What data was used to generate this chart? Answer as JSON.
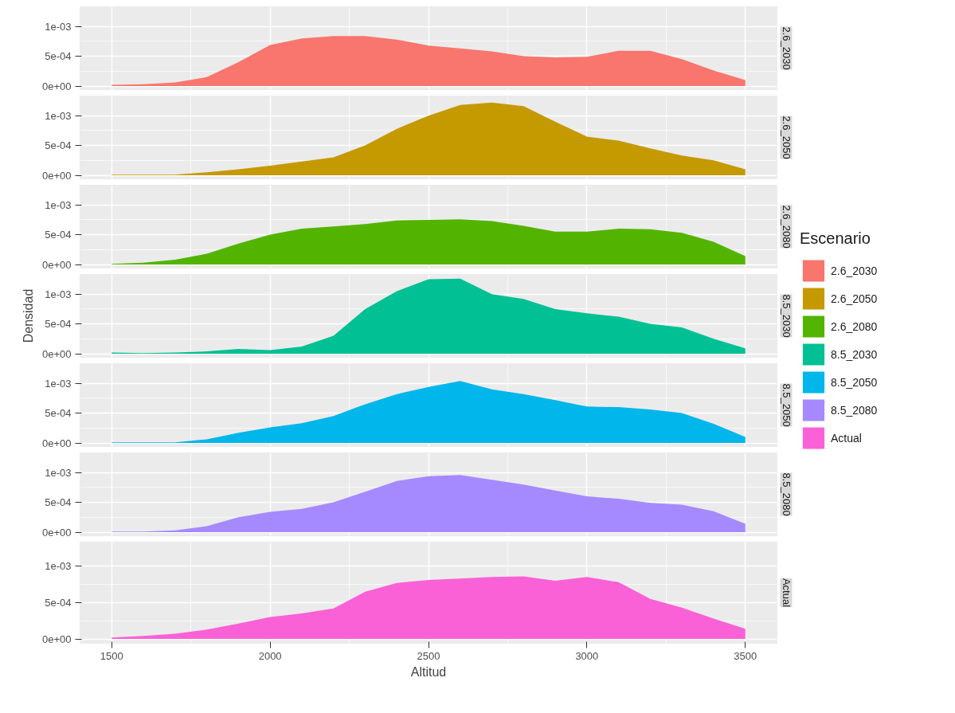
{
  "chart_data": [
    {
      "type": "area",
      "x": [
        1500,
        1600,
        1700,
        1800,
        1900,
        2000,
        2100,
        2200,
        2300,
        2400,
        2500,
        2600,
        2700,
        2800,
        2900,
        3000,
        3100,
        3200,
        3300,
        3400,
        3500
      ],
      "series": [
        {
          "name": "2.6_2030",
          "color": "#f8766d",
          "values": [
            2e-05,
            3e-05,
            6e-05,
            0.00015,
            0.0004,
            0.00069,
            0.0008,
            0.00084,
            0.00084,
            0.00078,
            0.00068,
            0.00063,
            0.00058,
            0.0005,
            0.00048,
            0.00049,
            0.00059,
            0.00059,
            0.00045,
            0.00026,
            0.0001
          ]
        }
      ],
      "xlim": [
        1400,
        3600
      ],
      "ylim": [
        -6e-05,
        0.00133
      ],
      "yticks": [
        {
          "value": 0,
          "label": "0e+00"
        },
        {
          "value": 0.0005,
          "label": "5e-04"
        },
        {
          "value": 0.001,
          "label": "1e-03"
        }
      ],
      "xticks": [
        1500,
        2000,
        2500,
        3000,
        3500
      ],
      "tick_labels": "y",
      "grid": true,
      "legend": "right",
      "legend_title": "Escenario"
    },
    {
      "type": "area",
      "x": [
        1500,
        1600,
        1700,
        1800,
        1900,
        2000,
        2100,
        2200,
        2300,
        2400,
        2500,
        2600,
        2700,
        2800,
        2900,
        3000,
        3100,
        3200,
        3300,
        3400,
        3500
      ],
      "series": [
        {
          "name": "2.6_2050",
          "color": "#c49a00",
          "values": [
            1e-05,
            1e-05,
            1e-05,
            5e-05,
            0.0001,
            0.00016,
            0.00023,
            0.0003,
            0.0005,
            0.00078,
            0.001,
            0.00118,
            0.00122,
            0.00116,
            0.0009,
            0.00065,
            0.00058,
            0.00045,
            0.00033,
            0.00025,
            0.0001
          ]
        }
      ],
      "xlim": [
        1400,
        3600
      ],
      "ylim": [
        -6e-05,
        0.00133
      ],
      "yticks": [
        {
          "value": 0,
          "label": "0e+00"
        },
        {
          "value": 0.0005,
          "label": "5e-04"
        },
        {
          "value": 0.001,
          "label": "1e-03"
        }
      ],
      "xticks": [
        1500,
        2000,
        2500,
        3000,
        3500
      ],
      "tick_labels": "y",
      "grid": true,
      "legend": "right"
    },
    {
      "type": "area",
      "x": [
        1500,
        1600,
        1700,
        1800,
        1900,
        2000,
        2100,
        2200,
        2300,
        2400,
        2500,
        2600,
        2700,
        2800,
        2900,
        3000,
        3100,
        3200,
        3300,
        3400,
        3500
      ],
      "series": [
        {
          "name": "2.6_2080",
          "color": "#53b400",
          "values": [
            1e-05,
            3e-05,
            8e-05,
            0.00018,
            0.00035,
            0.0005,
            0.0006,
            0.00064,
            0.00068,
            0.00074,
            0.00075,
            0.00076,
            0.00073,
            0.00065,
            0.00055,
            0.00055,
            0.0006,
            0.00059,
            0.00053,
            0.00038,
            0.00014
          ]
        }
      ],
      "xlim": [
        1400,
        3600
      ],
      "ylim": [
        -6e-05,
        0.00133
      ],
      "yticks": [
        {
          "value": 0,
          "label": "0e+00"
        },
        {
          "value": 0.0005,
          "label": "5e-04"
        },
        {
          "value": 0.001,
          "label": "1e-03"
        }
      ],
      "xticks": [
        1500,
        2000,
        2500,
        3000,
        3500
      ],
      "tick_labels": "y",
      "grid": true,
      "legend": "right"
    },
    {
      "type": "area",
      "x": [
        1500,
        1600,
        1700,
        1800,
        1900,
        2000,
        2100,
        2200,
        2300,
        2400,
        2500,
        2600,
        2700,
        2800,
        2900,
        3000,
        3100,
        3200,
        3300,
        3400,
        3500
      ],
      "series": [
        {
          "name": "8.5_2030",
          "color": "#00c094",
          "values": [
            2e-05,
            1e-05,
            2e-05,
            4e-05,
            8e-05,
            6e-05,
            0.00012,
            0.0003,
            0.00075,
            0.00105,
            0.00125,
            0.00126,
            0.001,
            0.00092,
            0.00075,
            0.00068,
            0.00062,
            0.0005,
            0.00044,
            0.00025,
            9e-05
          ]
        }
      ],
      "xlim": [
        1400,
        3600
      ],
      "ylim": [
        -6e-05,
        0.00133
      ],
      "yticks": [
        {
          "value": 0,
          "label": "0e+00"
        },
        {
          "value": 0.0005,
          "label": "5e-04"
        },
        {
          "value": 0.001,
          "label": "1e-03"
        }
      ],
      "xticks": [
        1500,
        2000,
        2500,
        3000,
        3500
      ],
      "tick_labels": "y",
      "grid": true,
      "legend": "right",
      "ylabel": "Densidad"
    },
    {
      "type": "area",
      "x": [
        1500,
        1600,
        1700,
        1800,
        1900,
        2000,
        2100,
        2200,
        2300,
        2400,
        2500,
        2600,
        2700,
        2800,
        2900,
        3000,
        3100,
        3200,
        3300,
        3400,
        3500
      ],
      "series": [
        {
          "name": "8.5_2050",
          "color": "#00b6eb",
          "values": [
            1e-05,
            1e-05,
            1e-05,
            6e-05,
            0.00017,
            0.00026,
            0.00033,
            0.00045,
            0.00065,
            0.00082,
            0.00094,
            0.00104,
            0.0009,
            0.00082,
            0.00072,
            0.00061,
            0.0006,
            0.00056,
            0.0005,
            0.00032,
            0.0001
          ]
        }
      ],
      "xlim": [
        1400,
        3600
      ],
      "ylim": [
        -6e-05,
        0.00133
      ],
      "yticks": [
        {
          "value": 0,
          "label": "0e+00"
        },
        {
          "value": 0.0005,
          "label": "5e-04"
        },
        {
          "value": 0.001,
          "label": "1e-03"
        }
      ],
      "xticks": [
        1500,
        2000,
        2500,
        3000,
        3500
      ],
      "tick_labels": "y",
      "grid": true,
      "legend": "right"
    },
    {
      "type": "area",
      "x": [
        1500,
        1600,
        1700,
        1800,
        1900,
        2000,
        2100,
        2200,
        2300,
        2400,
        2500,
        2600,
        2700,
        2800,
        2900,
        3000,
        3100,
        3200,
        3300,
        3400,
        3500
      ],
      "series": [
        {
          "name": "8.5_2080",
          "color": "#a58aff",
          "values": [
            1e-05,
            1e-05,
            3e-05,
            0.0001,
            0.00025,
            0.00034,
            0.00039,
            0.0005,
            0.00068,
            0.00086,
            0.00094,
            0.00096,
            0.00088,
            0.0008,
            0.0007,
            0.0006,
            0.00056,
            0.00049,
            0.00046,
            0.00035,
            0.00014
          ]
        }
      ],
      "xlim": [
        1400,
        3600
      ],
      "ylim": [
        -6e-05,
        0.00133
      ],
      "yticks": [
        {
          "value": 0,
          "label": "0e+00"
        },
        {
          "value": 0.0005,
          "label": "5e-04"
        },
        {
          "value": 0.001,
          "label": "1e-03"
        }
      ],
      "xticks": [
        1500,
        2000,
        2500,
        3000,
        3500
      ],
      "tick_labels": "y",
      "grid": true,
      "legend": "right"
    },
    {
      "type": "area",
      "x": [
        1500,
        1600,
        1700,
        1800,
        1900,
        2000,
        2100,
        2200,
        2300,
        2400,
        2500,
        2600,
        2700,
        2800,
        2900,
        3000,
        3100,
        3200,
        3300,
        3400,
        3500
      ],
      "series": [
        {
          "name": "Actual",
          "color": "#fb61d7",
          "values": [
            2e-05,
            4e-05,
            7e-05,
            0.00013,
            0.00021,
            0.0003,
            0.00035,
            0.00042,
            0.00065,
            0.00077,
            0.00081,
            0.00083,
            0.00085,
            0.00086,
            0.0008,
            0.00085,
            0.00078,
            0.00055,
            0.00043,
            0.00028,
            0.00014
          ]
        }
      ],
      "xlim": [
        1400,
        3600
      ],
      "ylim": [
        -6e-05,
        0.00133
      ],
      "yticks": [
        {
          "value": 0,
          "label": "0e+00"
        },
        {
          "value": 0.0005,
          "label": "5e-04"
        },
        {
          "value": 0.001,
          "label": "1e-03"
        }
      ],
      "xticks": [
        1500,
        2000,
        2500,
        3000,
        3500
      ],
      "grid": true,
      "legend": "right",
      "xlabel": "Altitud"
    }
  ]
}
